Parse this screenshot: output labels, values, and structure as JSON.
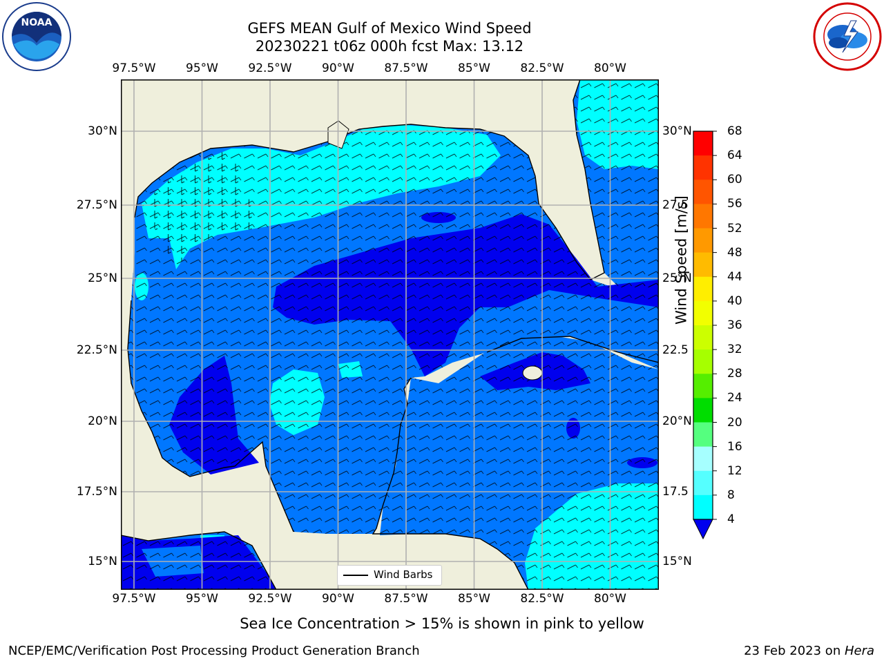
{
  "title": {
    "line1": "GEFS MEAN Gulf of Mexico Wind Speed",
    "line2": "20230221 t06z 000h fcst   Max: 13.12"
  },
  "logos": {
    "left": {
      "text": "NOAA",
      "icon": "noaa-logo-icon"
    },
    "right": {
      "icon": "nws-logo-icon"
    }
  },
  "axes": {
    "lon_ticks": [
      "97.5°W",
      "95°W",
      "92.5°W",
      "90°W",
      "87.5°W",
      "85°W",
      "82.5°W",
      "80°W"
    ],
    "lat_ticks_left": [
      "30°N",
      "27.5°N",
      "25°N",
      "22.5°N",
      "20°N",
      "17.5°N",
      "15°N"
    ],
    "lat_ticks_right": [
      "30°N",
      "27.5",
      "25°N",
      "22.5",
      "20°N",
      "17.5",
      "15°N"
    ]
  },
  "colorbar": {
    "label": "Wind Speed [m/s]",
    "ticks": [
      "68",
      "64",
      "60",
      "56",
      "52",
      "48",
      "44",
      "40",
      "36",
      "32",
      "28",
      "24",
      "20",
      "16",
      "12",
      "8",
      "4"
    ],
    "colors": [
      "#ff0000",
      "#ff3300",
      "#ff5500",
      "#ff7700",
      "#ff9900",
      "#ffbb00",
      "#ffee00",
      "#f2ff00",
      "#ccff00",
      "#a6ff00",
      "#55ee00",
      "#00dd00",
      "#55ff7f",
      "#a6ffff",
      "#55ffff",
      "#00ffff",
      "#0077ff"
    ],
    "under_color": "#0000ee"
  },
  "map": {
    "land_color": "#efefdc",
    "ocean_colors": {
      "4-8": "#0077ff",
      "8-12": "#00ffff",
      "12-16": "#55ffff",
      "<4": "#0000ee"
    }
  },
  "legend": {
    "label": "Wind Barbs"
  },
  "note": "Sea Ice Concentration > 15% is shown in pink to yellow",
  "footer": {
    "left": "NCEP/EMC/Verification Post Processing Product Generation Branch",
    "right_date": "23 Feb 2023 on ",
    "right_host": "Hera"
  }
}
